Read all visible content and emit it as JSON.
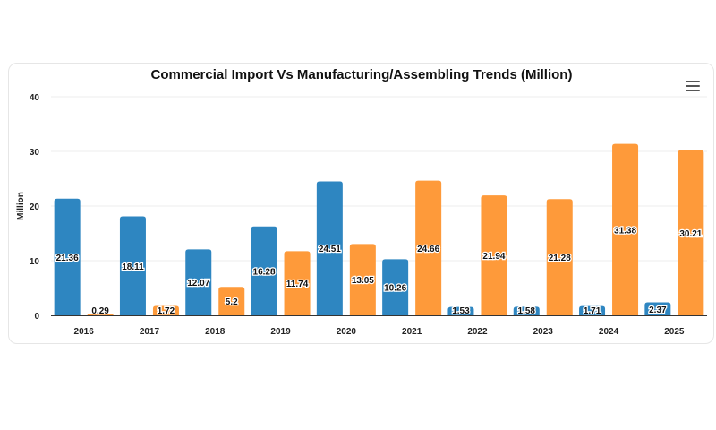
{
  "chart_data": {
    "type": "bar",
    "title": "Commercial Import Vs Manufacturing/Assembling Trends (Million)",
    "xlabel": "",
    "ylabel": "Million",
    "ylim": [
      0,
      40
    ],
    "yticks": [
      0,
      10,
      20,
      30,
      40
    ],
    "grid": true,
    "legend": "none",
    "categories": [
      "2016",
      "2017",
      "2018",
      "2019",
      "2020",
      "2021",
      "2022",
      "2023",
      "2024",
      "2025"
    ],
    "series": [
      {
        "color": "#2e86c1",
        "values": [
          21.36,
          18.11,
          12.07,
          16.28,
          24.51,
          10.26,
          1.53,
          1.58,
          1.71,
          2.37
        ]
      },
      {
        "color": "#fe9a3a",
        "values": [
          0.29,
          1.72,
          5.2,
          11.74,
          13.05,
          24.66,
          21.94,
          21.28,
          31.38,
          30.21
        ]
      }
    ]
  },
  "menu_icon": "hamburger-menu-icon"
}
